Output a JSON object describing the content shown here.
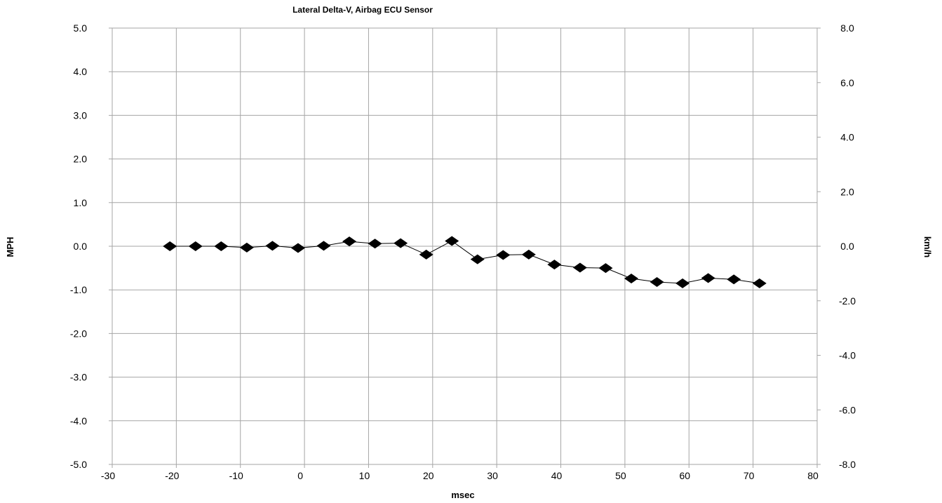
{
  "chart_data": {
    "type": "line",
    "title": "Lateral Delta-V, Airbag ECU Sensor",
    "xlabel": "msec",
    "ylabel": "MPH",
    "y2label": "km/h",
    "xlim": [
      -30,
      80
    ],
    "ylim": [
      -5,
      5
    ],
    "y2lim": [
      -8,
      8
    ],
    "x_ticks": [
      "-30",
      "-20",
      "-10",
      "0",
      "10",
      "20",
      "30",
      "40",
      "50",
      "60",
      "70",
      "80"
    ],
    "y_ticks": [
      "5.0",
      "4.0",
      "3.0",
      "2.0",
      "1.0",
      "0.0",
      "-1.0",
      "-2.0",
      "-3.0",
      "-4.0",
      "-5.0"
    ],
    "y2_ticks": [
      "8.0",
      "6.0",
      "4.0",
      "2.0",
      "0.0",
      "-2.0",
      "-4.0",
      "-6.0",
      "-8.0"
    ],
    "grid": true,
    "marker": "diamond",
    "series_color": "#000000",
    "grid_color": "#a6a6a6",
    "series": [
      {
        "x": [
          -21,
          -17,
          -13,
          -9,
          -5,
          -1,
          3,
          7,
          11,
          15,
          19,
          23,
          27,
          31,
          35,
          39,
          43,
          47,
          51,
          55,
          59,
          63,
          67,
          71
        ],
        "values": [
          0.0,
          0.0,
          0.0,
          -0.03,
          0.01,
          -0.04,
          0.01,
          0.11,
          0.06,
          0.07,
          -0.19,
          0.12,
          -0.3,
          -0.2,
          -0.19,
          -0.42,
          -0.49,
          -0.5,
          -0.74,
          -0.82,
          -0.85,
          -0.73,
          -0.76,
          -0.85
        ]
      }
    ]
  }
}
